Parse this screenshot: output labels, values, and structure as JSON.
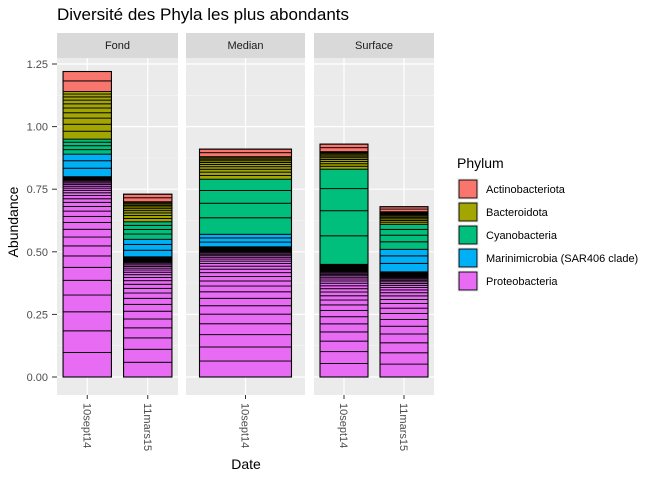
{
  "chart_data": {
    "type": "bar",
    "stacked": true,
    "title": "Diversité des Phyla les plus abondants",
    "xlabel": "Date",
    "ylabel": "Abundance",
    "ylim": [
      0,
      1.25
    ],
    "yticks": [
      0.0,
      0.25,
      0.5,
      0.75,
      1.0,
      1.25
    ],
    "ytick_labels": [
      "0.00",
      "0.25",
      "0.50",
      "0.75",
      "1.00",
      "1.25"
    ],
    "grid": true,
    "legend_position": "right",
    "legend_title": "Phylum",
    "legend": [
      {
        "name": "Actinobacteriota",
        "color": "#F8766D"
      },
      {
        "name": "Bacteroidota",
        "color": "#A3A500"
      },
      {
        "name": "Cyanobacteria",
        "color": "#00BF7D"
      },
      {
        "name": "Marinimicrobia (SAR406 clade)",
        "color": "#00B0F6"
      },
      {
        "name": "Proteobacteria",
        "color": "#E76BF3"
      }
    ],
    "panels": [
      {
        "label": "Fond",
        "bars": [
          {
            "x": "10sept14",
            "totals": {
              "Proteobacteria": 0.8,
              "Marinimicrobia (SAR406 clade)": 0.09,
              "Cyanobacteria": 0.06,
              "Bacteroidota": 0.19,
              "Actinobacteriota": 0.08
            }
          },
          {
            "x": "11mars15",
            "totals": {
              "Proteobacteria": 0.48,
              "Marinimicrobia (SAR406 clade)": 0.07,
              "Cyanobacteria": 0.07,
              "Bacteroidota": 0.08,
              "Actinobacteriota": 0.03
            }
          }
        ]
      },
      {
        "label": "Median",
        "bars": [
          {
            "x": "10sept14",
            "totals": {
              "Proteobacteria": 0.52,
              "Marinimicrobia (SAR406 clade)": 0.05,
              "Cyanobacteria": 0.22,
              "Bacteroidota": 0.09,
              "Actinobacteriota": 0.03
            }
          }
        ]
      },
      {
        "label": "Surface",
        "bars": [
          {
            "x": "10sept14",
            "totals": {
              "Proteobacteria": 0.44,
              "Marinimicrobia (SAR406 clade)": 0.01,
              "Cyanobacteria": 0.38,
              "Bacteroidota": 0.07,
              "Actinobacteriota": 0.03
            }
          },
          {
            "x": "11mars15",
            "totals": {
              "Proteobacteria": 0.42,
              "Marinimicrobia (SAR406 clade)": 0.09,
              "Cyanobacteria": 0.1,
              "Bacteroidota": 0.05,
              "Actinobacteriota": 0.02
            }
          }
        ]
      }
    ]
  }
}
